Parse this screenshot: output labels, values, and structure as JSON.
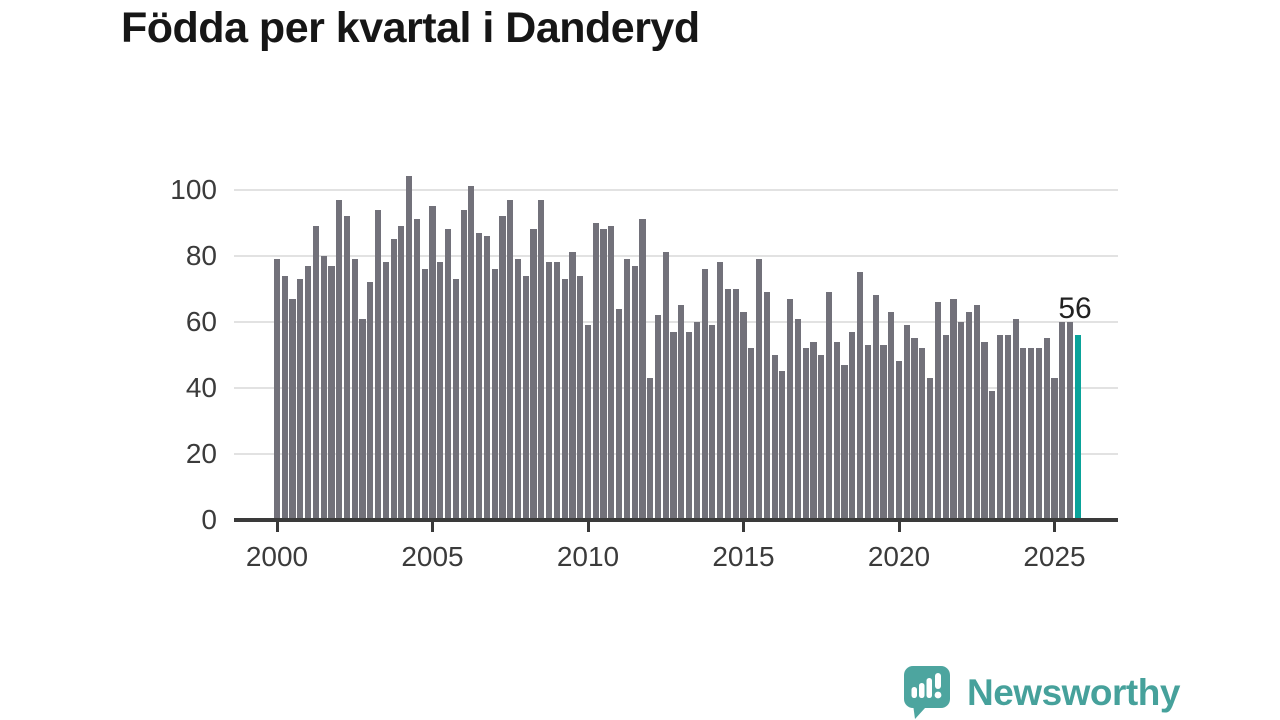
{
  "title": "Födda per kvartal i Danderyd",
  "chart_data": {
    "type": "bar",
    "title": "Födda per kvartal i Danderyd",
    "start_period": "2000 Q1",
    "end_period": "2025 Q4",
    "quarters_per_year": 4,
    "values": [
      79,
      74,
      67,
      73,
      77,
      89,
      80,
      77,
      97,
      92,
      79,
      61,
      72,
      94,
      78,
      85,
      89,
      104,
      91,
      76,
      95,
      78,
      88,
      73,
      94,
      101,
      87,
      86,
      76,
      92,
      97,
      79,
      74,
      88,
      97,
      78,
      78,
      73,
      81,
      74,
      59,
      90,
      88,
      89,
      64,
      79,
      77,
      91,
      43,
      62,
      81,
      57,
      65,
      57,
      60,
      76,
      59,
      78,
      70,
      70,
      63,
      52,
      79,
      69,
      50,
      45,
      67,
      61,
      52,
      54,
      50,
      69,
      54,
      47,
      57,
      75,
      53,
      68,
      53,
      63,
      48,
      59,
      55,
      52,
      43,
      66,
      56,
      67,
      60,
      63,
      65,
      54,
      39,
      56,
      56,
      61,
      52,
      52,
      52,
      55,
      43,
      60,
      60,
      56
    ],
    "highlight_last_bar": true,
    "x_tick_labels": [
      "2000",
      "2005",
      "2010",
      "2015",
      "2020",
      "2025"
    ],
    "x_tick_start_year": 2000,
    "y_tick_labels": [
      "0",
      "20",
      "40",
      "60",
      "80",
      "100"
    ],
    "ylim": [
      0,
      106
    ],
    "grid": "horizontal",
    "legend": "none",
    "bar_color": "#72717a",
    "highlight_color": "#0aa39a"
  },
  "annotation": {
    "last_value_label": "56"
  },
  "branding": {
    "name": "Newsworthy",
    "color": "#46a19b",
    "icon": "newsworthy-chart-bubble-icon"
  }
}
